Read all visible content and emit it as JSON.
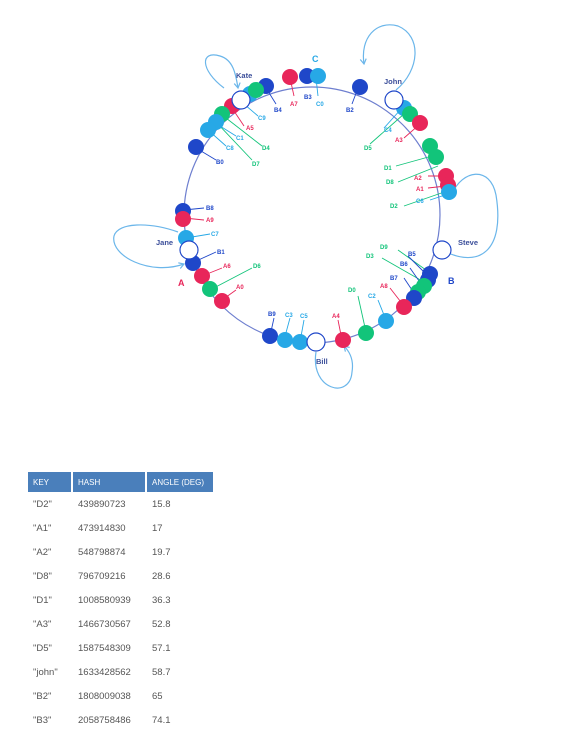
{
  "colors": {
    "A": "#e8265a",
    "B": "#1f47c9",
    "C": "#27a8e6",
    "D": "#12c47a",
    "server": "#ffffff",
    "ring": "#6e7fcf",
    "loop": "#6bb6ea"
  },
  "diagram": {
    "servers": [
      "Kate",
      "John",
      "Steve",
      "Bill",
      "Jane"
    ],
    "groups": [
      "C",
      "B",
      "A"
    ],
    "points": [
      "B4",
      "B3",
      "A7",
      "C0",
      "B2",
      "C9",
      "A5",
      "C4",
      "A3",
      "C1",
      "C8",
      "D4",
      "D5",
      "B0",
      "D7",
      "D1",
      "A2",
      "D8",
      "A1",
      "C6",
      "D2",
      "B8",
      "A9",
      "C7",
      "B1",
      "D9",
      "B5",
      "D3",
      "B6",
      "A6",
      "D6",
      "B7",
      "A8",
      "A0",
      "D0",
      "C2",
      "B9",
      "C3",
      "C5",
      "A4"
    ]
  },
  "table": {
    "headers": [
      "KEY",
      "HASH",
      "ANGLE (DEG)"
    ],
    "rows": [
      [
        "\"D2\"",
        "439890723",
        "15.8"
      ],
      [
        "\"A1\"",
        "473914830",
        "17"
      ],
      [
        "\"A2\"",
        "548798874",
        "19.7"
      ],
      [
        "\"D8\"",
        "796709216",
        "28.6"
      ],
      [
        "\"D1\"",
        "1008580939",
        "36.3"
      ],
      [
        "\"A3\"",
        "1466730567",
        "52.8"
      ],
      [
        "\"D5\"",
        "1587548309",
        "57.1"
      ],
      [
        "\"john\"",
        "1633428562",
        "58.7"
      ],
      [
        "\"B2\"",
        "1808009038",
        "65"
      ],
      [
        "\"B3\"",
        "2058758486",
        "74.1"
      ]
    ]
  }
}
